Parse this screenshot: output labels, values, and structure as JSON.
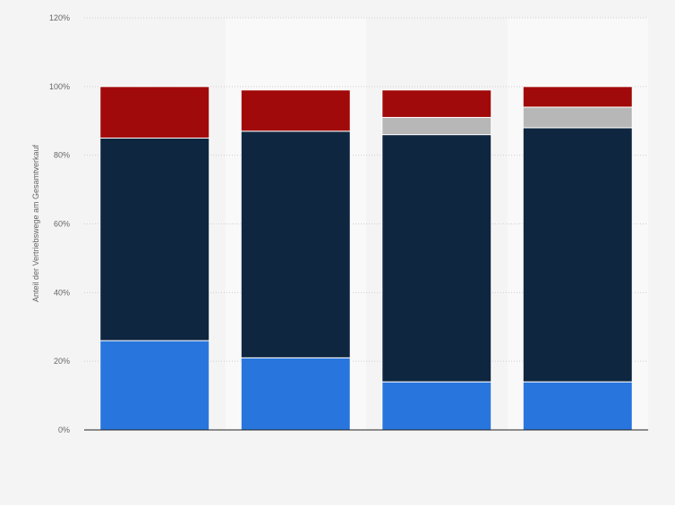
{
  "chart_data": {
    "type": "bar",
    "stacked": true,
    "ylabel": "Anteil der Vertriebswege am Gesamtverkauf",
    "xlabel": "",
    "ylim": [
      0,
      120
    ],
    "yticks": [
      "0%",
      "20%",
      "40%",
      "60%",
      "80%",
      "100%",
      "120%"
    ],
    "categories": [
      "",
      "",
      "",
      ""
    ],
    "grid": true,
    "legend": "none",
    "series": [
      {
        "color": "#2876dd",
        "values": [
          26,
          21,
          14,
          14
        ]
      },
      {
        "color": "#0f2640",
        "values": [
          59,
          66,
          72,
          74
        ]
      },
      {
        "color": "#b7b7b7",
        "values": [
          0,
          0,
          5,
          6
        ]
      },
      {
        "color": "#a10a0a",
        "values": [
          15,
          12,
          8,
          6
        ]
      }
    ]
  }
}
